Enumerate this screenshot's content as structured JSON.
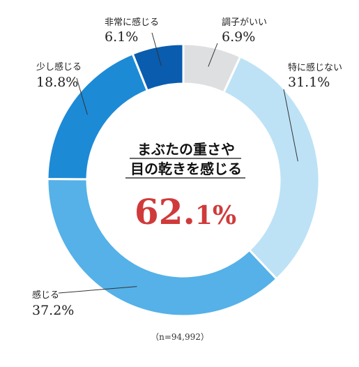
{
  "chart_data": {
    "type": "pie",
    "style": "donut",
    "slices": [
      {
        "label": "調子がいい",
        "value_text": "6.9%",
        "value": 6.9,
        "color": "#dedfe1"
      },
      {
        "label": "特に感じない",
        "value_text": "31.1%",
        "value": 31.1,
        "color": "#bde2f6"
      },
      {
        "label": "感じる",
        "value_text": "37.2%",
        "value": 37.2,
        "color": "#55b1e8"
      },
      {
        "label": "少し感じる",
        "value_text": "18.8%",
        "value": 18.8,
        "color": "#1d8ad6"
      },
      {
        "label": "非常に感じる",
        "value_text": "6.1%",
        "value": 6.1,
        "color": "#0a5cae"
      }
    ],
    "center": {
      "line1": "まぶたの重さや",
      "line2": "目の乾きを感じる",
      "value_main": "62.",
      "value_sub": "1%"
    },
    "note": "（n=94,992）"
  }
}
